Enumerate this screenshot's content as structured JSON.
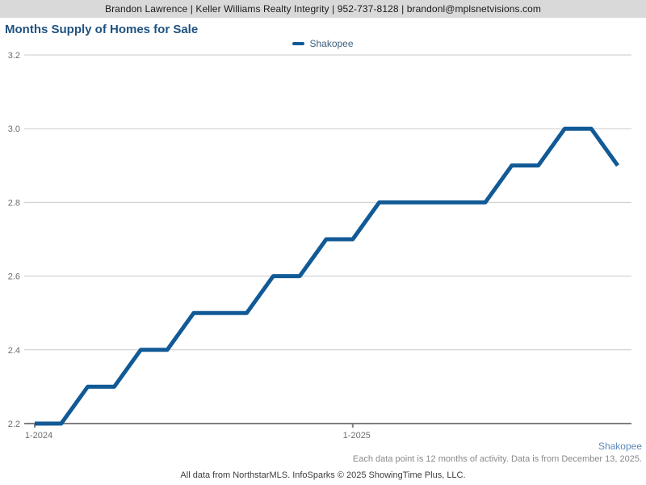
{
  "header": {
    "contact_line": "Brandon Lawrence | Keller Williams Realty Integrity | 952-737-8128 | brandonl@mplsnetvisions.com"
  },
  "title": "Months Supply of Homes for Sale",
  "legend": {
    "label": "Shakopee"
  },
  "footer": {
    "series_label": "Shakopee",
    "note": "Each data point is 12 months of activity. Data is from December 13, 2025.",
    "attribution": "All data from NorthstarMLS. InfoSparks © 2025 ShowingTime Plus, LLC."
  },
  "colors": {
    "line": "#115a96",
    "grid": "#c9c9c9",
    "axis": "#7f7f7f",
    "tick_label": "#6e6e6e",
    "header_bg": "#d9d9d9",
    "title_text": "#1f5280"
  },
  "chart_data": {
    "type": "line",
    "title": "Months Supply of Homes for Sale",
    "x": [
      "1-2024",
      "2-2024",
      "3-2024",
      "4-2024",
      "5-2024",
      "6-2024",
      "7-2024",
      "8-2024",
      "9-2024",
      "10-2024",
      "11-2024",
      "12-2024",
      "1-2025",
      "2-2025",
      "3-2025",
      "4-2025",
      "5-2025",
      "6-2025",
      "7-2025",
      "8-2025",
      "9-2025",
      "10-2025",
      "11-2025"
    ],
    "series": [
      {
        "name": "Shakopee",
        "values": [
          2.2,
          2.2,
          2.3,
          2.3,
          2.4,
          2.4,
          2.5,
          2.5,
          2.5,
          2.6,
          2.6,
          2.7,
          2.7,
          2.8,
          2.8,
          2.8,
          2.8,
          2.8,
          2.9,
          2.9,
          3.0,
          3.0,
          2.9
        ]
      }
    ],
    "x_tick_labels": [
      "1-2024",
      "1-2025"
    ],
    "ylim": [
      2.2,
      3.2
    ],
    "yticks": [
      2.2,
      2.4,
      2.6,
      2.8,
      3.0,
      3.2
    ],
    "grid": "horizontal",
    "legend_position": "top-center"
  }
}
